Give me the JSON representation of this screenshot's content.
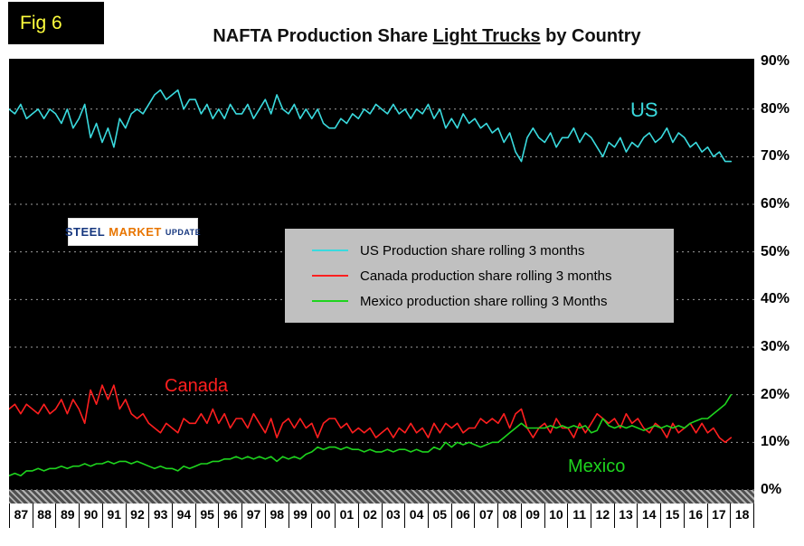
{
  "fig_label": "Fig 6",
  "title": {
    "part1": "NAFTA Production Share ",
    "underlined": "Light Trucks",
    "part2": " by Country"
  },
  "logo": {
    "word1": "STEEL",
    "word2": "MARKET",
    "word3": "UPDATE"
  },
  "annotations": {
    "us": "US",
    "canada": "Canada",
    "mexico": "Mexico"
  },
  "colors": {
    "plot_background": "#000000",
    "legend_background": "#c0c0c0",
    "figure_label": "#ffff3d",
    "grid": "#9c9c9c"
  },
  "chart_data": {
    "type": "line",
    "title": "NAFTA Production Share Light Trucks by Country",
    "xlabel": "",
    "ylabel": "",
    "grid": true,
    "legend_position": "center",
    "ylim": [
      0,
      90
    ],
    "x_range": [
      1987,
      2019
    ],
    "x_start": 1987,
    "x_step": 0.25,
    "y_tick_labels": [
      "90%",
      "80%",
      "70%",
      "60%",
      "50%",
      "40%",
      "30%",
      "20%",
      "10%",
      "0%"
    ],
    "x_tick_labels": [
      "87",
      "88",
      "89",
      "90",
      "91",
      "92",
      "93",
      "94",
      "95",
      "96",
      "97",
      "98",
      "99",
      "00",
      "01",
      "02",
      "03",
      "04",
      "05",
      "06",
      "07",
      "08",
      "09",
      "10",
      "11",
      "12",
      "13",
      "14",
      "15",
      "16",
      "17",
      "18"
    ],
    "series": [
      {
        "name": "US Production share rolling 3 months",
        "label": "US",
        "color": "#3adade",
        "values": [
          80,
          79,
          81,
          78,
          79,
          80,
          78,
          80,
          79,
          77,
          80,
          76,
          78,
          81,
          74,
          77,
          73,
          76,
          72,
          78,
          76,
          79,
          80,
          79,
          81,
          83,
          84,
          82,
          83,
          84,
          80,
          82,
          82,
          79,
          81,
          78,
          80,
          78,
          81,
          79,
          79,
          81,
          78,
          80,
          82,
          79,
          83,
          80,
          79,
          81,
          78,
          80,
          78,
          80,
          77,
          76,
          76,
          78,
          77,
          79,
          78,
          80,
          79,
          81,
          80,
          79,
          81,
          79,
          80,
          78,
          80,
          79,
          81,
          78,
          80,
          76,
          78,
          76,
          79,
          77,
          78,
          76,
          77,
          75,
          76,
          73,
          75,
          71,
          69,
          74,
          76,
          74,
          73,
          75,
          72,
          74,
          74,
          76,
          73,
          75,
          74,
          72,
          70,
          73,
          72,
          74,
          71,
          73,
          72,
          74,
          75,
          73,
          74,
          76,
          73,
          75,
          74,
          72,
          73,
          71,
          72,
          70,
          71,
          69,
          69
        ]
      },
      {
        "name": "Canada production share rolling 3 months",
        "label": "Canada",
        "color": "#ff1f1f",
        "values": [
          17,
          18,
          16,
          18,
          17,
          16,
          18,
          16,
          17,
          19,
          16,
          19,
          17,
          14,
          21,
          18,
          22,
          19,
          22,
          17,
          19,
          16,
          15,
          16,
          14,
          13,
          12,
          14,
          13,
          12,
          15,
          14,
          14,
          16,
          14,
          17,
          14,
          16,
          13,
          15,
          15,
          13,
          16,
          14,
          12,
          15,
          11,
          14,
          15,
          13,
          15,
          13,
          14,
          11,
          14,
          15,
          15,
          13,
          14,
          12,
          13,
          12,
          13,
          11,
          12,
          13,
          11,
          13,
          12,
          14,
          12,
          13,
          11,
          14,
          12,
          14,
          13,
          14,
          12,
          13,
          13,
          15,
          14,
          15,
          14,
          16,
          13,
          16,
          17,
          13,
          11,
          13,
          14,
          12,
          15,
          13,
          13,
          11,
          14,
          12,
          14,
          16,
          15,
          14,
          15,
          13,
          16,
          14,
          15,
          13,
          12,
          14,
          13,
          11,
          14,
          12,
          13,
          14,
          12,
          14,
          12,
          13,
          11,
          10,
          11
        ]
      },
      {
        "name": "Mexico production share rolling 3 Months",
        "label": "Mexico",
        "color": "#1ed41e",
        "values": [
          3,
          3.5,
          3,
          4,
          4,
          4.5,
          4,
          4.5,
          4.5,
          5,
          4.5,
          5,
          5,
          5.5,
          5,
          5.5,
          5.5,
          6,
          5.5,
          6,
          6,
          5.5,
          6,
          5.5,
          5,
          4.5,
          5,
          4.5,
          4.5,
          4,
          5,
          4.5,
          5,
          5.5,
          5.5,
          6,
          6,
          6.5,
          6.5,
          7,
          6.5,
          7,
          6.5,
          7,
          6.5,
          7,
          6,
          7,
          6.5,
          7,
          6.5,
          7.5,
          8,
          9,
          8.5,
          9,
          9,
          8.5,
          9,
          8.5,
          8.5,
          8,
          8.5,
          8,
          8,
          8.5,
          8,
          8.5,
          8.5,
          8,
          8.5,
          8,
          8,
          9,
          8.5,
          10,
          9,
          10,
          9.5,
          10,
          9.5,
          9,
          9.5,
          10,
          10,
          11,
          12,
          13,
          14,
          13,
          13,
          13,
          13,
          13.5,
          13,
          13.5,
          13,
          13.5,
          13,
          13.5,
          12,
          12.5,
          15,
          13.5,
          13,
          13.5,
          13,
          13.5,
          13,
          12.5,
          13,
          13.5,
          13,
          13.5,
          13,
          13.5,
          13,
          14,
          14.5,
          15,
          15,
          16,
          17,
          18,
          20
        ]
      }
    ]
  }
}
